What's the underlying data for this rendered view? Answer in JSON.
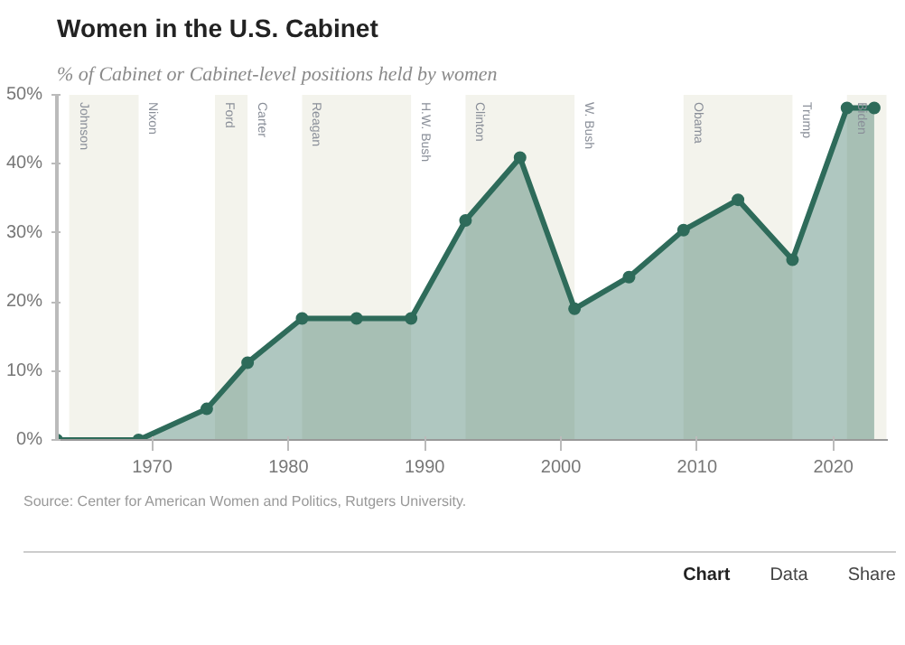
{
  "chart_data": {
    "type": "area",
    "title": "Women in the U.S. Cabinet",
    "subtitle": "% of Cabinet or Cabinet-level positions held by women",
    "x": [
      1963,
      1969,
      1974,
      1977,
      1981,
      1985,
      1989,
      1993,
      1997,
      2001,
      2005,
      2009,
      2013,
      2017,
      2021,
      2023
    ],
    "series": [
      {
        "color": "#2e6b5a",
        "values": [
          0,
          0,
          4.5,
          11.2,
          17.6,
          17.6,
          17.6,
          31.8,
          40.9,
          19.0,
          23.6,
          30.4,
          34.8,
          26.1,
          48.1,
          48.1
        ]
      }
    ],
    "marker": "circle",
    "xlim": [
      1963,
      2024
    ],
    "xticks": [
      1970,
      1980,
      1990,
      2000,
      2010,
      2020
    ],
    "ylim": [
      0,
      50
    ],
    "yticks": [
      {
        "value": 0,
        "label": "0%"
      },
      {
        "value": 10,
        "label": "10%"
      },
      {
        "value": 20,
        "label": "20%"
      },
      {
        "value": 30,
        "label": "30%"
      },
      {
        "value": 40,
        "label": "40%"
      },
      {
        "value": 50,
        "label": "50%"
      }
    ],
    "grid": false,
    "bands": [
      {
        "axis": "x",
        "from": 1963.9,
        "to": 1969,
        "label": "Johnson",
        "color": "#f3f3ec"
      },
      {
        "axis": "x",
        "from": 1974.6,
        "to": 1977,
        "label": "Ford",
        "color": "#f3f3ec"
      },
      {
        "axis": "x",
        "from": 1981,
        "to": 1989,
        "label": "Reagan",
        "color": "#f3f3ec"
      },
      {
        "axis": "x",
        "from": 1993,
        "to": 2001,
        "label": "Clinton",
        "color": "#f3f3ec"
      },
      {
        "axis": "x",
        "from": 2009,
        "to": 2017,
        "label": "Obama",
        "color": "#f3f3ec"
      },
      {
        "axis": "x",
        "from": 2021,
        "to": 2023.9,
        "label": "Biden",
        "color": "#f3f3ec"
      }
    ],
    "annotations": [
      {
        "text": "Nixon",
        "x": 1969,
        "y": 50
      },
      {
        "text": "Carter",
        "x": 1977,
        "y": 50
      },
      {
        "text": "H.W. Bush",
        "x": 1989,
        "y": 50
      },
      {
        "text": "W. Bush",
        "x": 2001,
        "y": 50
      },
      {
        "text": "Trump",
        "x": 2017,
        "y": 50
      },
      "Source: Center for American Women and Politics, Rutgers University.",
      "Chart",
      "Data",
      "Share"
    ]
  }
}
